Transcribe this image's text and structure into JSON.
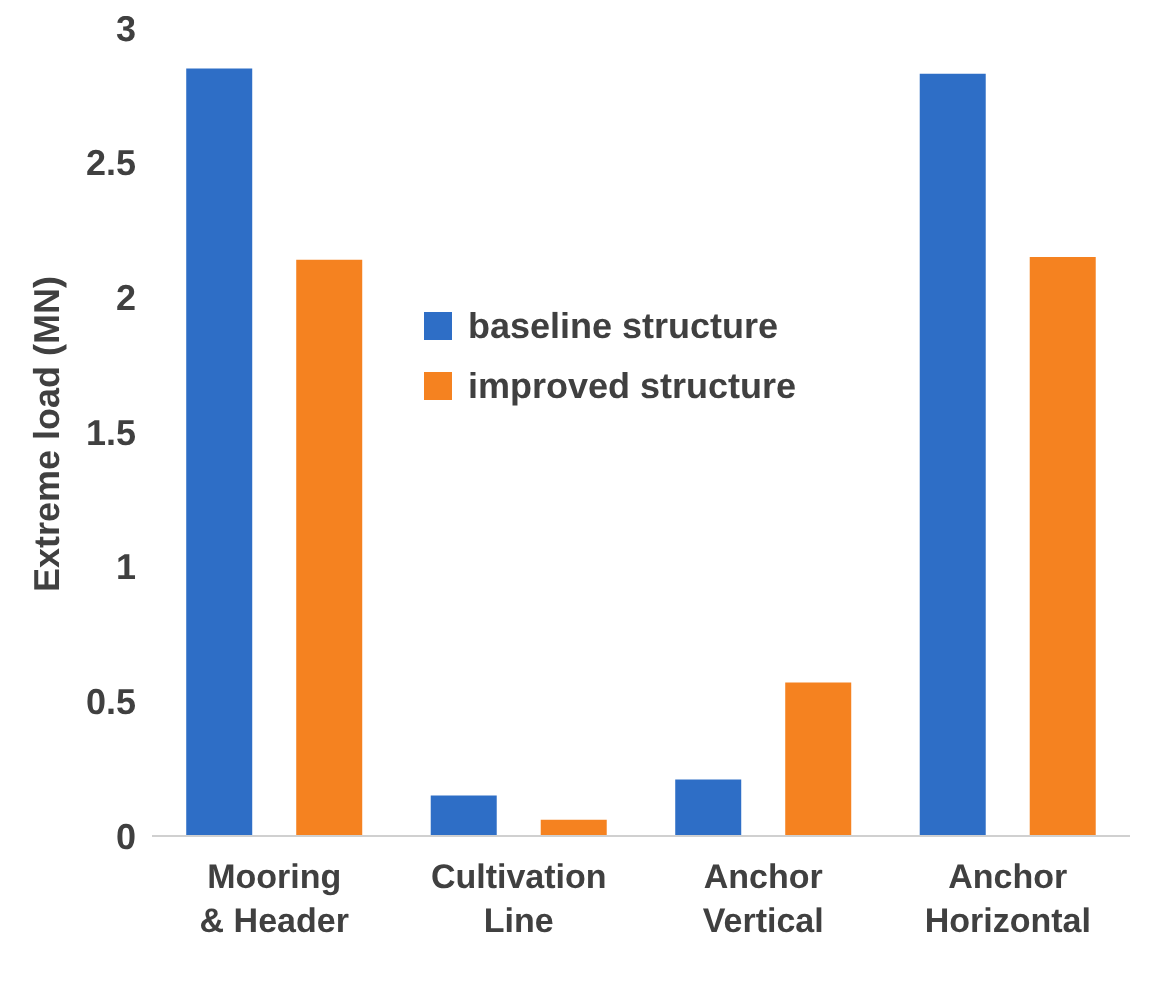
{
  "chart_data": {
    "type": "bar",
    "ylabel": "Extreme load (MN)",
    "categories": [
      "Mooring\n& Header",
      "Cultivation\nLine",
      "Anchor\nVertical",
      "Anchor\nHorizontal"
    ],
    "series": [
      {
        "name": "baseline structure",
        "color": "#2e6ec6",
        "values": [
          2.85,
          0.15,
          0.21,
          2.83
        ]
      },
      {
        "name": "improved structure",
        "color": "#f58220",
        "values": [
          2.14,
          0.06,
          0.57,
          2.15
        ]
      }
    ],
    "ylim": [
      0,
      3
    ],
    "yticks": [
      0,
      0.5,
      1,
      1.5,
      2,
      2.5,
      3
    ],
    "grid": false,
    "legend": "top"
  }
}
